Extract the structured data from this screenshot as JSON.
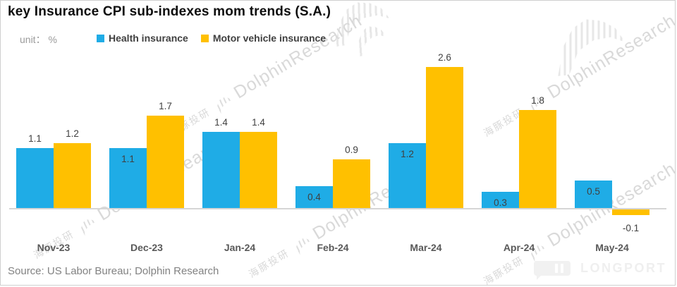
{
  "title": "key Insurance CPI sub-indexes mom trends  (S.A.)",
  "unit_label": "unit： %",
  "legend": [
    {
      "label": "Health insurance",
      "color": "#1FACE6"
    },
    {
      "label": "Motor vehicle insurance",
      "color": "#FFC000"
    }
  ],
  "chart_data": {
    "type": "bar",
    "title": "key Insurance CPI sub-indexes mom trends  (S.A.)",
    "ylabel": "unit： %",
    "categories": [
      "Nov-23",
      "Dec-23",
      "Jan-24",
      "Feb-24",
      "Mar-24",
      "Apr-24",
      "May-24"
    ],
    "series": [
      {
        "name": "Health insurance",
        "key": "health",
        "color": "#1FACE6",
        "values": [
          1.1,
          1.1,
          1.4,
          0.4,
          1.2,
          0.3,
          0.5
        ],
        "label_positions": [
          "above",
          "inside",
          "above",
          "inside",
          "inside",
          "inside",
          "inside"
        ]
      },
      {
        "name": "Motor vehicle insurance",
        "key": "motor",
        "color": "#FFC000",
        "values": [
          1.2,
          1.7,
          1.4,
          0.9,
          2.6,
          1.8,
          -0.1
        ],
        "label_positions": [
          "above",
          "above",
          "above",
          "above",
          "above",
          "above",
          "below"
        ]
      }
    ],
    "ylim": [
      -0.3,
      2.8
    ],
    "grid": false,
    "legend_position": "top"
  },
  "source": "Source: US Labor Bureau; Dolphin Research",
  "watermark": {
    "text_cn": "海豚投研",
    "text_en": "DolphinResearch",
    "logo_text": "LONGPORT"
  }
}
